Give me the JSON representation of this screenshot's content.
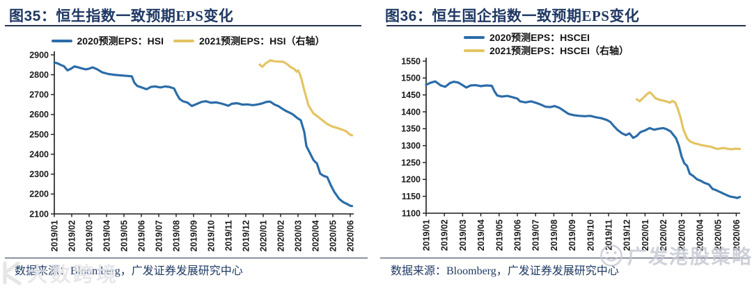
{
  "colors": {
    "series_2020_blue": "#2b6ca8",
    "series_2021_yellow": "#e3c463",
    "title_navy": "#1f3864",
    "rule_navy": "#273150",
    "axis_black": "#1a1a1a",
    "watermark_gray": "#c2c6d0"
  },
  "watermarks": {
    "bottom_left_text": "大数跨境",
    "bottom_right_text": "广发港股策略",
    "bottom_right_icon": "smiley-face-logo"
  },
  "charts": [
    {
      "figure_label": "图35：",
      "title_text": "恒生指数一致预期EPS变化",
      "source_text": "数据来源：Bloomberg，广发证券发展研究中心",
      "legend": [
        {
          "id": "eps2020",
          "label": "2020预测EPS：HSI",
          "color": "#2b6ca8"
        },
        {
          "id": "eps2021",
          "label": "2021预测EPS：HSI（右轴）",
          "color": "#e3c463"
        }
      ],
      "chart_data": {
        "type": "line",
        "title": "恒生指数一致预期EPS变化",
        "x_unit": "month index, 0 = 2019/01, 17 = 2020/06",
        "x_ticks": [
          "2019/01",
          "2019/02",
          "2019/03",
          "2019/04",
          "2019/05",
          "2019/06",
          "2019/07",
          "2019/08",
          "2019/09",
          "2019/10",
          "2019/11",
          "2019/12",
          "2020/01",
          "2020/02",
          "2020/03",
          "2020/04",
          "2020/05",
          "2020/06"
        ],
        "y_left": {
          "min": 2100,
          "max": 2900,
          "step": 100
        },
        "y_right": {
          "labels_visible": false,
          "note": "legend says 右轴 (right axis) but no right-axis labels are shown; 2021 series values below are in left-axis display scale"
        },
        "grid": false,
        "legend_position": "top-center-row",
        "series": [
          {
            "id": "eps2020",
            "name": "2020预测EPS：HSI",
            "axis": "left",
            "color": "#2b6ca8",
            "points": [
              [
                0,
                2862
              ],
              [
                0.2,
                2857
              ],
              [
                0.35,
                2850
              ],
              [
                0.55,
                2843
              ],
              [
                0.76,
                2822
              ],
              [
                0.95,
                2830
              ],
              [
                1.16,
                2842
              ],
              [
                1.45,
                2835
              ],
              [
                1.8,
                2827
              ],
              [
                2.0,
                2831
              ],
              [
                2.2,
                2837
              ],
              [
                2.45,
                2828
              ],
              [
                2.76,
                2812
              ],
              [
                3.1,
                2804
              ],
              [
                3.4,
                2800
              ],
              [
                3.8,
                2797
              ],
              [
                4.2,
                2794
              ],
              [
                4.45,
                2792
              ],
              [
                4.6,
                2760
              ],
              [
                4.76,
                2744
              ],
              [
                5.0,
                2737
              ],
              [
                5.3,
                2727
              ],
              [
                5.55,
                2739
              ],
              [
                5.8,
                2741
              ],
              [
                6.1,
                2736
              ],
              [
                6.35,
                2741
              ],
              [
                6.6,
                2739
              ],
              [
                6.88,
                2731
              ],
              [
                7.05,
                2700
              ],
              [
                7.2,
                2678
              ],
              [
                7.4,
                2666
              ],
              [
                7.65,
                2660
              ],
              [
                7.9,
                2643
              ],
              [
                8.15,
                2652
              ],
              [
                8.45,
                2663
              ],
              [
                8.7,
                2667
              ],
              [
                9.0,
                2659
              ],
              [
                9.3,
                2661
              ],
              [
                9.6,
                2655
              ],
              [
                9.8,
                2650
              ],
              [
                10.0,
                2644
              ],
              [
                10.2,
                2654
              ],
              [
                10.5,
                2657
              ],
              [
                10.8,
                2650
              ],
              [
                11.1,
                2651
              ],
              [
                11.4,
                2647
              ],
              [
                11.7,
                2651
              ],
              [
                11.95,
                2656
              ],
              [
                12.2,
                2664
              ],
              [
                12.4,
                2665
              ],
              [
                12.65,
                2650
              ],
              [
                12.88,
                2642
              ],
              [
                13.08,
                2630
              ],
              [
                13.28,
                2619
              ],
              [
                13.5,
                2610
              ],
              [
                13.68,
                2602
              ],
              [
                13.96,
                2582
              ],
              [
                14.16,
                2571
              ],
              [
                14.36,
                2512
              ],
              [
                14.48,
                2441
              ],
              [
                14.68,
                2407
              ],
              [
                14.88,
                2372
              ],
              [
                15.0,
                2360
              ],
              [
                15.08,
                2355
              ],
              [
                15.28,
                2302
              ],
              [
                15.48,
                2291
              ],
              [
                15.68,
                2285
              ],
              [
                15.88,
                2245
              ],
              [
                16.08,
                2211
              ],
              [
                16.36,
                2176
              ],
              [
                16.6,
                2159
              ],
              [
                16.88,
                2147
              ],
              [
                17.0,
                2141
              ],
              [
                17.1,
                2140
              ]
            ]
          },
          {
            "id": "eps2021",
            "name": "2021预测EPS：HSI（右轴）",
            "axis": "right",
            "color": "#e3c463",
            "points": [
              [
                11.8,
                2851
              ],
              [
                11.95,
                2840
              ],
              [
                12.15,
                2858
              ],
              [
                12.4,
                2872
              ],
              [
                12.65,
                2868
              ],
              [
                12.9,
                2866
              ],
              [
                13.16,
                2865
              ],
              [
                13.4,
                2852
              ],
              [
                13.55,
                2840
              ],
              [
                13.68,
                2834
              ],
              [
                13.8,
                2828
              ],
              [
                13.92,
                2815
              ],
              [
                14.0,
                2822
              ],
              [
                14.1,
                2805
              ],
              [
                14.2,
                2778
              ],
              [
                14.36,
                2722
              ],
              [
                14.6,
                2646
              ],
              [
                14.88,
                2606
              ],
              [
                15.16,
                2588
              ],
              [
                15.4,
                2571
              ],
              [
                15.68,
                2552
              ],
              [
                15.96,
                2540
              ],
              [
                16.2,
                2534
              ],
              [
                16.4,
                2528
              ],
              [
                16.6,
                2522
              ],
              [
                16.78,
                2515
              ],
              [
                16.96,
                2500
              ],
              [
                17.1,
                2495
              ]
            ]
          }
        ]
      }
    },
    {
      "figure_label": "图36：",
      "title_text": "恒生国企指数一致预期EPS变化",
      "source_text": "数据来源：Bloomberg，广发证券发展研究中心",
      "legend": [
        {
          "id": "eps2020",
          "label": "2020预测EPS：HSCEI",
          "color": "#2b6ca8"
        },
        {
          "id": "eps2021",
          "label": "2021预测EPS：HSCEI（右轴）",
          "color": "#e3c463"
        }
      ],
      "chart_data": {
        "type": "line",
        "title": "恒生国企指数一致预期EPS变化",
        "x_unit": "month index, 0 = 2019/01, 17 = 2020/06",
        "x_ticks": [
          "2019/01",
          "2019/02",
          "2019/03",
          "2019/04",
          "2019/05",
          "2019/06",
          "2019/07",
          "2019/08",
          "2019/09",
          "2019/10",
          "2019/11",
          "2019/12",
          "2020/01",
          "2020/02",
          "2020/03",
          "2020/04",
          "2020/05",
          "2020/06"
        ],
        "y_left": {
          "min": 1100,
          "max": 1550,
          "step": 50
        },
        "y_right": {
          "labels_visible": false,
          "note": "legend says 右轴 (right axis) but no right-axis labels are shown; 2021 series values below are in left-axis display scale"
        },
        "grid": false,
        "legend_position": "top-left-column",
        "series": [
          {
            "id": "eps2020",
            "name": "2020预测EPS：HSCEI",
            "axis": "left",
            "color": "#2b6ca8",
            "points": [
              [
                0,
                1480
              ],
              [
                0.25,
                1486
              ],
              [
                0.5,
                1490
              ],
              [
                0.8,
                1478
              ],
              [
                1.05,
                1474
              ],
              [
                1.3,
                1485
              ],
              [
                1.5,
                1489
              ],
              [
                1.75,
                1487
              ],
              [
                2.0,
                1479
              ],
              [
                2.2,
                1472
              ],
              [
                2.45,
                1478
              ],
              [
                2.7,
                1479
              ],
              [
                3.0,
                1476
              ],
              [
                3.3,
                1478
              ],
              [
                3.6,
                1477
              ],
              [
                3.75,
                1460
              ],
              [
                3.9,
                1448
              ],
              [
                4.15,
                1445
              ],
              [
                4.45,
                1447
              ],
              [
                4.75,
                1443
              ],
              [
                5.0,
                1439
              ],
              [
                5.15,
                1431
              ],
              [
                5.45,
                1428
              ],
              [
                5.75,
                1431
              ],
              [
                6.05,
                1426
              ],
              [
                6.3,
                1421
              ],
              [
                6.55,
                1415
              ],
              [
                6.8,
                1414
              ],
              [
                7.05,
                1417
              ],
              [
                7.3,
                1412
              ],
              [
                7.55,
                1403
              ],
              [
                7.8,
                1394
              ],
              [
                8.1,
                1390
              ],
              [
                8.4,
                1388
              ],
              [
                8.7,
                1387
              ],
              [
                9.0,
                1388
              ],
              [
                9.3,
                1384
              ],
              [
                9.6,
                1381
              ],
              [
                9.9,
                1376
              ],
              [
                10.1,
                1370
              ],
              [
                10.3,
                1357
              ],
              [
                10.5,
                1346
              ],
              [
                10.75,
                1336
              ],
              [
                10.95,
                1331
              ],
              [
                11.15,
                1336
              ],
              [
                11.35,
                1323
              ],
              [
                11.55,
                1329
              ],
              [
                11.75,
                1340
              ],
              [
                12.0,
                1345
              ],
              [
                12.25,
                1352
              ],
              [
                12.5,
                1347
              ],
              [
                12.75,
                1350
              ],
              [
                13.0,
                1352
              ],
              [
                13.2,
                1348
              ],
              [
                13.4,
                1342
              ],
              [
                13.55,
                1332
              ],
              [
                13.7,
                1322
              ],
              [
                13.85,
                1300
              ],
              [
                14.0,
                1268
              ],
              [
                14.15,
                1248
              ],
              [
                14.3,
                1240
              ],
              [
                14.45,
                1217
              ],
              [
                14.65,
                1210
              ],
              [
                14.85,
                1200
              ],
              [
                15.05,
                1196
              ],
              [
                15.25,
                1190
              ],
              [
                15.5,
                1185
              ],
              [
                15.7,
                1172
              ],
              [
                15.9,
                1168
              ],
              [
                16.1,
                1163
              ],
              [
                16.3,
                1158
              ],
              [
                16.5,
                1153
              ],
              [
                16.7,
                1149
              ],
              [
                16.9,
                1147
              ],
              [
                17.05,
                1145
              ],
              [
                17.2,
                1148
              ]
            ]
          },
          {
            "id": "eps2021",
            "name": "2021预测EPS：HSCEI（右轴）",
            "axis": "right",
            "color": "#e3c463",
            "points": [
              [
                11.55,
                1437
              ],
              [
                11.7,
                1431
              ],
              [
                11.9,
                1441
              ],
              [
                12.1,
                1452
              ],
              [
                12.25,
                1458
              ],
              [
                12.4,
                1451
              ],
              [
                12.55,
                1441
              ],
              [
                12.75,
                1436
              ],
              [
                12.95,
                1434
              ],
              [
                13.15,
                1431
              ],
              [
                13.35,
                1427
              ],
              [
                13.5,
                1432
              ],
              [
                13.65,
                1428
              ],
              [
                13.8,
                1408
              ],
              [
                13.95,
                1382
              ],
              [
                14.1,
                1348
              ],
              [
                14.3,
                1322
              ],
              [
                14.45,
                1313
              ],
              [
                14.65,
                1308
              ],
              [
                14.85,
                1305
              ],
              [
                15.05,
                1302
              ],
              [
                15.25,
                1300
              ],
              [
                15.45,
                1298
              ],
              [
                15.65,
                1296
              ],
              [
                15.85,
                1292
              ],
              [
                16.0,
                1290
              ],
              [
                16.15,
                1292
              ],
              [
                16.35,
                1293
              ],
              [
                16.55,
                1290
              ],
              [
                16.75,
                1289
              ],
              [
                16.95,
                1291
              ],
              [
                17.2,
                1290
              ]
            ]
          }
        ]
      }
    }
  ]
}
